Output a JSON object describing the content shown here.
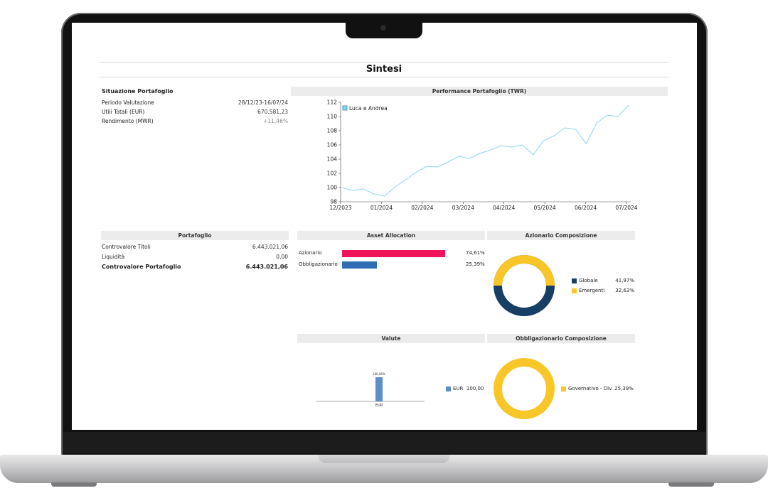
{
  "page_title": "Sintesi",
  "situazione": {
    "heading": "Situazione Portafoglio",
    "rows": [
      {
        "label": "Periodo Valutazione",
        "value": "28/12/23-16/07/24"
      },
      {
        "label": "Utili Totali (EUR)",
        "value": "670.581,23"
      },
      {
        "label": "Rendimento (MWR)",
        "value": "+11,46%"
      }
    ]
  },
  "performance": {
    "heading": "Performance Portafoglio (TWR)",
    "legend": "Luca e Andrea",
    "line_color": "#8fd3f0"
  },
  "portafoglio": {
    "heading": "Portafoglio",
    "rows": [
      {
        "label": "Controvalore Titoli",
        "value": "6.443.021,06"
      },
      {
        "label": "Liquidità",
        "value": "0,00"
      },
      {
        "label": "Controvalore Portafoglio",
        "value": "6.443.021,06"
      }
    ]
  },
  "asset_allocation": {
    "heading": "Asset Allocation",
    "items": [
      {
        "label": "Azionario",
        "value": "74,61%",
        "fraction": 0.7461,
        "color": "#f0145a"
      },
      {
        "label": "Obbligazionario",
        "value": "25,39%",
        "fraction": 0.2539,
        "color": "#2f6db5"
      }
    ]
  },
  "azionario": {
    "heading": "Azionario Composizione",
    "items": [
      {
        "label": "Globale",
        "value": "41,97%",
        "color": "#173f66"
      },
      {
        "label": "Emergenti",
        "value": "32,63%",
        "color": "#f9c628"
      }
    ]
  },
  "valute": {
    "heading": "Valute",
    "bar_label": "100,00%",
    "category": "EUR",
    "legend_label": "EUR",
    "legend_value": "100,00",
    "color": "#5b8fc7"
  },
  "obbligazionario": {
    "heading": "Obbligazionario Composizione",
    "items": [
      {
        "label": "Governativo - Div.",
        "value": "25,39%",
        "color": "#f9c628"
      }
    ]
  },
  "chart_data": {
    "type": "line",
    "title": "Performance Portafoglio (TWR)",
    "series": [
      {
        "name": "Luca e Andrea",
        "x": [
          "12/2023",
          "12/2023",
          "01/2024",
          "01/2024",
          "01/2024",
          "01/2024",
          "02/2024",
          "02/2024",
          "02/2024",
          "02/2024",
          "03/2024",
          "03/2024",
          "03/2024",
          "03/2024",
          "04/2024",
          "04/2024",
          "04/2024",
          "04/2024",
          "05/2024",
          "05/2024",
          "05/2024",
          "05/2024",
          "06/2024",
          "06/2024",
          "06/2024",
          "06/2024",
          "07/2024",
          "07/2024"
        ],
        "values": [
          100.0,
          99.6,
          99.8,
          99.1,
          98.8,
          100.1,
          101.1,
          102.2,
          103.0,
          102.9,
          103.6,
          104.4,
          104.1,
          104.8,
          105.3,
          105.9,
          105.7,
          106.0,
          104.6,
          106.6,
          107.3,
          108.4,
          108.2,
          106.2,
          109.1,
          110.2,
          110.0,
          111.6
        ]
      }
    ],
    "x_ticks": [
      "12/2023",
      "01/2024",
      "02/2024",
      "03/2024",
      "04/2024",
      "05/2024",
      "06/2024",
      "07/2024"
    ],
    "y_ticks": [
      "98",
      "100",
      "102",
      "104",
      "106",
      "108",
      "110",
      "112"
    ],
    "ylim": [
      98,
      112
    ],
    "legend_position": "top-left"
  }
}
